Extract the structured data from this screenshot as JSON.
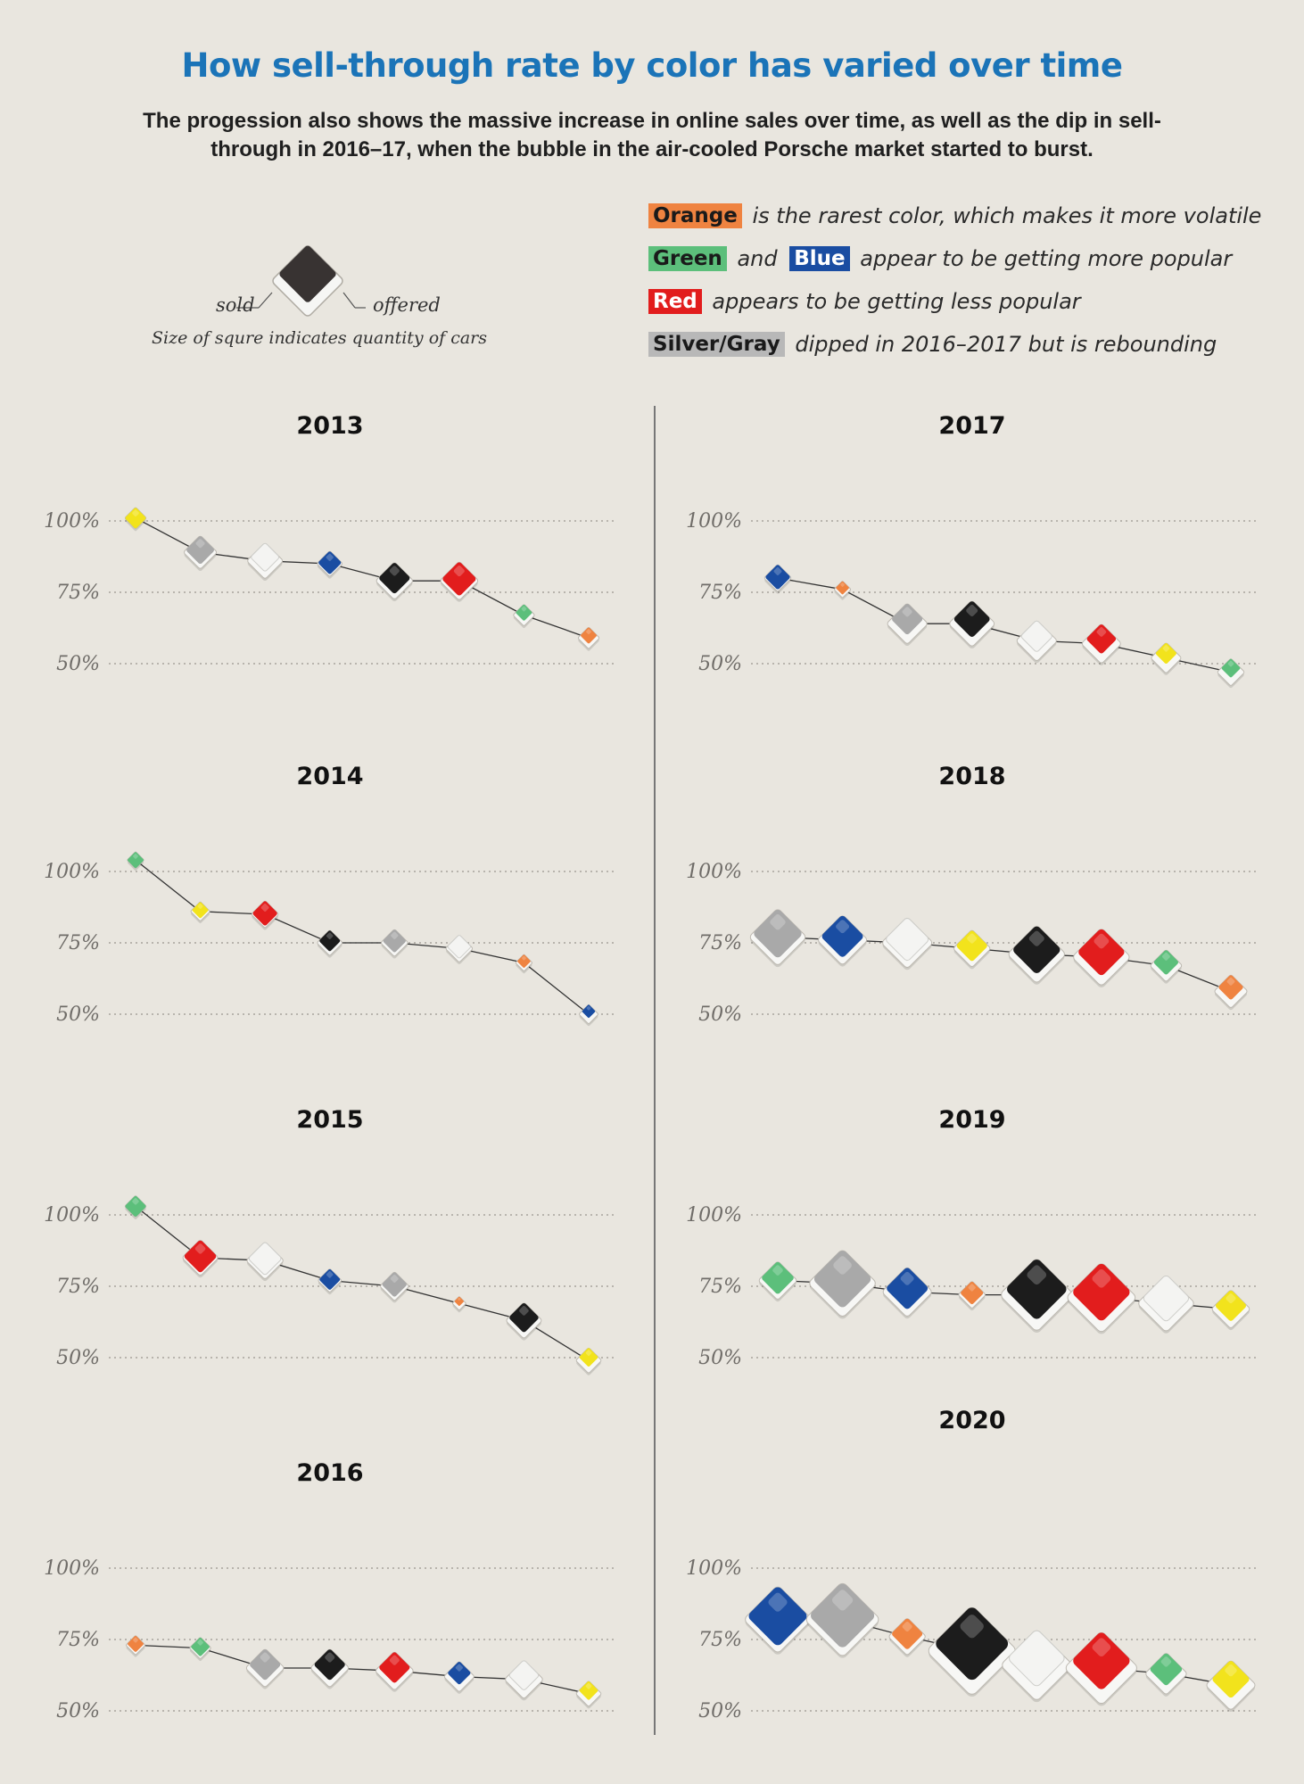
{
  "title": "How sell-through rate by color has varied over time",
  "subtitle": "The progession also shows the massive increase in online sales over time, as well as the dip in sell-through in 2016–17, when the bubble in the air-cooled Porsche market started to burst.",
  "notes": [
    {
      "tags": [
        {
          "text": "Orange",
          "color": "orange"
        }
      ],
      "connector": "",
      "text": "is the rarest color, which makes it more volatile"
    },
    {
      "tags": [
        {
          "text": "Green",
          "color": "green"
        },
        {
          "text": "Blue",
          "color": "blue"
        }
      ],
      "connector": "and",
      "text": "appear to be getting more popular"
    },
    {
      "tags": [
        {
          "text": "Red",
          "color": "red"
        }
      ],
      "connector": "",
      "text": "appears to be getting less popular"
    },
    {
      "tags": [
        {
          "text": "Silver/Gray",
          "color": "silver"
        }
      ],
      "connector": "",
      "text": "dipped in 2016–2017 but is rebounding"
    }
  ],
  "legend": {
    "sold_label": "sold",
    "offered_label": "offered",
    "caption": "Size of squre indicates quantity of cars"
  },
  "colors": {
    "yellow": "#f2e31c",
    "silver": "#a9a9a9",
    "white": "#f4f4f2",
    "blue": "#1a4da2",
    "black": "#1c1c1c",
    "red": "#e21d1d",
    "green": "#5cbf7b",
    "orange": "#ef8340",
    "title": "#1b74b8"
  },
  "chart_data": [
    {
      "type": "scatter",
      "title": "2013",
      "yticks": [
        "100%",
        "75%",
        "50%"
      ],
      "ylim": [
        50,
        100
      ],
      "points": [
        {
          "color": "yellow",
          "y": 101,
          "sold": 5,
          "offered": 5
        },
        {
          "color": "silver",
          "y": 89,
          "sold": 9,
          "offered": 12
        },
        {
          "color": "white",
          "y": 86,
          "sold": 9,
          "offered": 14
        },
        {
          "color": "blue",
          "y": 85,
          "sold": 6,
          "offered": 7
        },
        {
          "color": "black",
          "y": 79,
          "sold": 11,
          "offered": 15
        },
        {
          "color": "red",
          "y": 79,
          "sold": 13,
          "offered": 16
        },
        {
          "color": "green",
          "y": 67,
          "sold": 3,
          "offered": 5
        },
        {
          "color": "orange",
          "y": 59,
          "sold": 3,
          "offered": 5
        }
      ]
    },
    {
      "type": "scatter",
      "title": "2014",
      "yticks": [
        "100%",
        "75%",
        "50%"
      ],
      "ylim": [
        50,
        100
      ],
      "points": [
        {
          "color": "green",
          "y": 104,
          "sold": 3,
          "offered": 3
        },
        {
          "color": "yellow",
          "y": 86,
          "sold": 3,
          "offered": 4
        },
        {
          "color": "red",
          "y": 85,
          "sold": 7,
          "offered": 8
        },
        {
          "color": "black",
          "y": 75,
          "sold": 5,
          "offered": 7
        },
        {
          "color": "silver",
          "y": 75,
          "sold": 6,
          "offered": 8
        },
        {
          "color": "white",
          "y": 73,
          "sold": 6,
          "offered": 8
        },
        {
          "color": "orange",
          "y": 68,
          "sold": 2,
          "offered": 3
        },
        {
          "color": "blue",
          "y": 50,
          "sold": 2,
          "offered": 4
        }
      ]
    },
    {
      "type": "scatter",
      "title": "2015",
      "yticks": [
        "100%",
        "75%",
        "50%"
      ],
      "ylim": [
        50,
        100
      ],
      "points": [
        {
          "color": "green",
          "y": 103,
          "sold": 5,
          "offered": 5
        },
        {
          "color": "red",
          "y": 85,
          "sold": 12,
          "offered": 14
        },
        {
          "color": "white",
          "y": 84,
          "sold": 12,
          "offered": 15
        },
        {
          "color": "blue",
          "y": 77,
          "sold": 5,
          "offered": 6
        },
        {
          "color": "silver",
          "y": 75,
          "sold": 7,
          "offered": 9
        },
        {
          "color": "orange",
          "y": 69,
          "sold": 1,
          "offered": 2
        },
        {
          "color": "black",
          "y": 63,
          "sold": 10,
          "offered": 14
        },
        {
          "color": "yellow",
          "y": 49,
          "sold": 4,
          "offered": 7
        }
      ]
    },
    {
      "type": "scatter",
      "title": "2016",
      "yticks": [
        "100%",
        "75%",
        "50%"
      ],
      "ylim": [
        50,
        100
      ],
      "points": [
        {
          "color": "orange",
          "y": 73,
          "sold": 3,
          "offered": 4
        },
        {
          "color": "green",
          "y": 72,
          "sold": 4,
          "offered": 5
        },
        {
          "color": "silver",
          "y": 65,
          "sold": 11,
          "offered": 16
        },
        {
          "color": "black",
          "y": 65,
          "sold": 11,
          "offered": 16
        },
        {
          "color": "red",
          "y": 64,
          "sold": 11,
          "offered": 16
        },
        {
          "color": "blue",
          "y": 62,
          "sold": 6,
          "offered": 10
        },
        {
          "color": "white",
          "y": 61,
          "sold": 10,
          "offered": 16
        },
        {
          "color": "yellow",
          "y": 56,
          "sold": 4,
          "offered": 7
        }
      ]
    },
    {
      "type": "scatter",
      "title": "2017",
      "yticks": [
        "100%",
        "75%",
        "50%"
      ],
      "ylim": [
        50,
        100
      ],
      "points": [
        {
          "color": "blue",
          "y": 80,
          "sold": 7,
          "offered": 8
        },
        {
          "color": "orange",
          "y": 76,
          "sold": 2,
          "offered": 3
        },
        {
          "color": "silver",
          "y": 64,
          "sold": 11,
          "offered": 18
        },
        {
          "color": "black",
          "y": 64,
          "sold": 15,
          "offered": 23
        },
        {
          "color": "white",
          "y": 58,
          "sold": 11,
          "offered": 18
        },
        {
          "color": "red",
          "y": 57,
          "sold": 10,
          "offered": 17
        },
        {
          "color": "yellow",
          "y": 52,
          "sold": 5,
          "offered": 10
        },
        {
          "color": "green",
          "y": 47,
          "sold": 4,
          "offered": 8
        }
      ]
    },
    {
      "type": "scatter",
      "title": "2018",
      "yticks": [
        "100%",
        "75%",
        "50%"
      ],
      "ylim": [
        50,
        100
      ],
      "points": [
        {
          "color": "silver",
          "y": 77,
          "sold": 27,
          "offered": 35
        },
        {
          "color": "blue",
          "y": 76,
          "sold": 20,
          "offered": 27
        },
        {
          "color": "white",
          "y": 75,
          "sold": 21,
          "offered": 28
        },
        {
          "color": "yellow",
          "y": 73,
          "sold": 11,
          "offered": 15
        },
        {
          "color": "black",
          "y": 71,
          "sold": 26,
          "offered": 36
        },
        {
          "color": "red",
          "y": 70,
          "sold": 25,
          "offered": 36
        },
        {
          "color": "green",
          "y": 67,
          "sold": 7,
          "offered": 11
        },
        {
          "color": "orange",
          "y": 58,
          "sold": 7,
          "offered": 12
        }
      ]
    },
    {
      "type": "scatter",
      "title": "2019",
      "yticks": [
        "100%",
        "75%",
        "50%"
      ],
      "ylim": [
        50,
        100
      ],
      "points": [
        {
          "color": "green",
          "y": 77,
          "sold": 12,
          "offered": 16
        },
        {
          "color": "silver",
          "y": 76,
          "sold": 38,
          "offered": 50
        },
        {
          "color": "blue",
          "y": 73,
          "sold": 20,
          "offered": 27
        },
        {
          "color": "orange",
          "y": 72,
          "sold": 6,
          "offered": 8
        },
        {
          "color": "black",
          "y": 72,
          "sold": 42,
          "offered": 58
        },
        {
          "color": "red",
          "y": 71,
          "sold": 38,
          "offered": 53
        },
        {
          "color": "white",
          "y": 69,
          "sold": 24,
          "offered": 35
        },
        {
          "color": "yellow",
          "y": 67,
          "sold": 11,
          "offered": 16
        }
      ]
    },
    {
      "type": "scatter",
      "title": "2020",
      "yticks": [
        "100%",
        "75%",
        "50%"
      ],
      "ylim": [
        50,
        100
      ],
      "points": [
        {
          "color": "blue",
          "y": 82,
          "sold": 40,
          "offered": 49
        },
        {
          "color": "silver",
          "y": 82,
          "sold": 48,
          "offered": 60
        },
        {
          "color": "orange",
          "y": 76,
          "sold": 11,
          "offered": 15
        },
        {
          "color": "black",
          "y": 71,
          "sold": 62,
          "offered": 87
        },
        {
          "color": "white",
          "y": 66,
          "sold": 36,
          "offered": 55
        },
        {
          "color": "red",
          "y": 65,
          "sold": 38,
          "offered": 58
        },
        {
          "color": "green",
          "y": 63,
          "sold": 12,
          "offered": 19
        },
        {
          "color": "yellow",
          "y": 59,
          "sold": 16,
          "offered": 27
        }
      ]
    }
  ]
}
